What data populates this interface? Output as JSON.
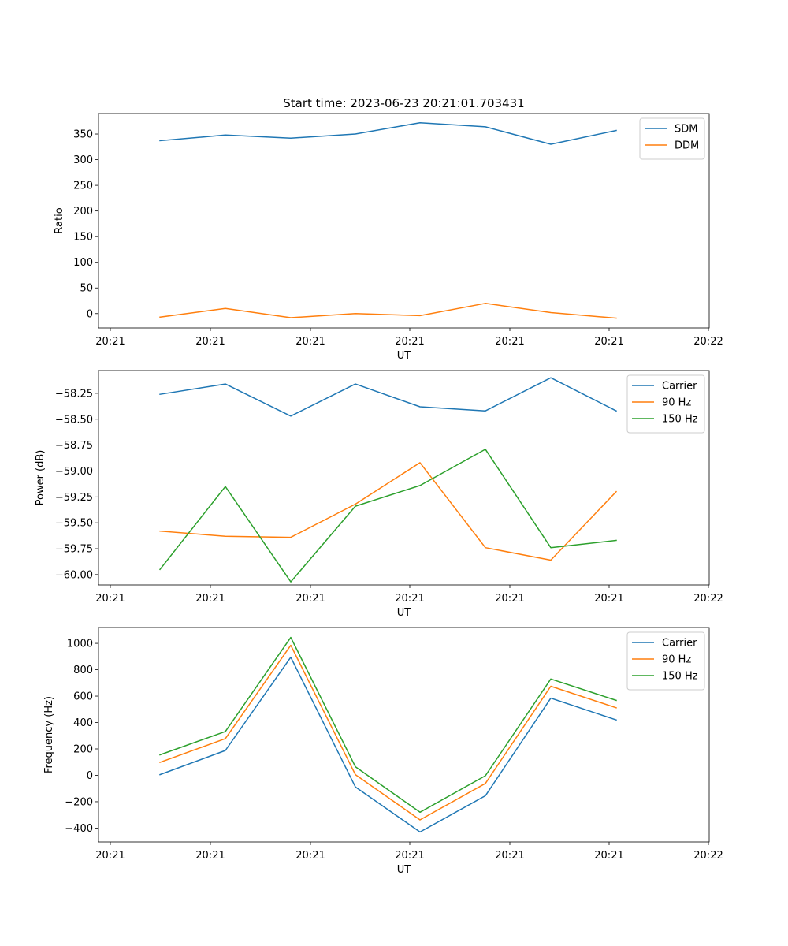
{
  "figure_title": "Start time: 2023-06-23 20:21:01.703431",
  "colors": {
    "blue": "#1f77b4",
    "orange": "#ff7f0e",
    "green": "#2ca02c"
  },
  "chart_data": [
    {
      "type": "line",
      "title": "Start time: 2023-06-23 20:21:01.703431",
      "xlabel": "UT",
      "ylabel": "Ratio",
      "x_tick_labels": [
        "20:21",
        "20:21",
        "20:21",
        "20:21",
        "20:21",
        "20:21",
        "20:22"
      ],
      "y_ticks": [
        0,
        50,
        100,
        150,
        200,
        250,
        300,
        350
      ],
      "y_tick_labels": [
        "0",
        "50",
        "100",
        "150",
        "200",
        "250",
        "300",
        "350"
      ],
      "ylim": [
        -28,
        390
      ],
      "grid": false,
      "legend_position": "top-right",
      "series": [
        {
          "name": "SDM",
          "color": "#1f77b4",
          "values": [
            337,
            348,
            342,
            350,
            372,
            364,
            330,
            357
          ]
        },
        {
          "name": "DDM",
          "color": "#ff7f0e",
          "values": [
            -7,
            10,
            -8,
            0,
            -4,
            20,
            2,
            -9
          ]
        }
      ]
    },
    {
      "type": "line",
      "xlabel": "UT",
      "ylabel": "Power (dB)",
      "x_tick_labels": [
        "20:21",
        "20:21",
        "20:21",
        "20:21",
        "20:21",
        "20:21",
        "20:22"
      ],
      "y_ticks": [
        -60.0,
        -59.75,
        -59.5,
        -59.25,
        -59.0,
        -58.75,
        -58.5,
        -58.25
      ],
      "y_tick_labels": [
        "−60.00",
        "−59.75",
        "−59.50",
        "−59.25",
        "−59.00",
        "−58.75",
        "−58.50",
        "−58.25"
      ],
      "ylim": [
        -60.1,
        -58.03
      ],
      "grid": false,
      "legend_position": "top-right",
      "series": [
        {
          "name": "Carrier",
          "color": "#1f77b4",
          "values": [
            -58.26,
            -58.16,
            -58.47,
            -58.16,
            -58.38,
            -58.42,
            -58.1,
            -58.42
          ]
        },
        {
          "name": "90 Hz",
          "color": "#ff7f0e",
          "values": [
            -59.58,
            -59.63,
            -59.64,
            -59.32,
            -58.92,
            -59.74,
            -59.86,
            -59.2
          ]
        },
        {
          "name": "150 Hz",
          "color": "#2ca02c",
          "values": [
            -59.95,
            -59.15,
            -60.07,
            -59.34,
            -59.14,
            -58.79,
            -59.74,
            -59.67
          ]
        }
      ]
    },
    {
      "type": "line",
      "xlabel": "UT",
      "ylabel": "Frequency (Hz)",
      "x_tick_labels": [
        "20:21",
        "20:21",
        "20:21",
        "20:21",
        "20:21",
        "20:21",
        "20:22"
      ],
      "y_ticks": [
        -400,
        -200,
        0,
        200,
        400,
        600,
        800,
        1000
      ],
      "y_tick_labels": [
        "−400",
        "−200",
        "0",
        "200",
        "400",
        "600",
        "800",
        "1000"
      ],
      "ylim": [
        -505,
        1120
      ],
      "grid": false,
      "legend_position": "top-right",
      "series": [
        {
          "name": "Carrier",
          "color": "#1f77b4",
          "values": [
            5,
            188,
            895,
            -88,
            -430,
            -155,
            585,
            420
          ]
        },
        {
          "name": "90 Hz",
          "color": "#ff7f0e",
          "values": [
            98,
            278,
            985,
            5,
            -338,
            -62,
            675,
            512
          ]
        },
        {
          "name": "150 Hz",
          "color": "#2ca02c",
          "values": [
            155,
            332,
            1045,
            65,
            -280,
            -3,
            730,
            568
          ]
        }
      ]
    }
  ]
}
